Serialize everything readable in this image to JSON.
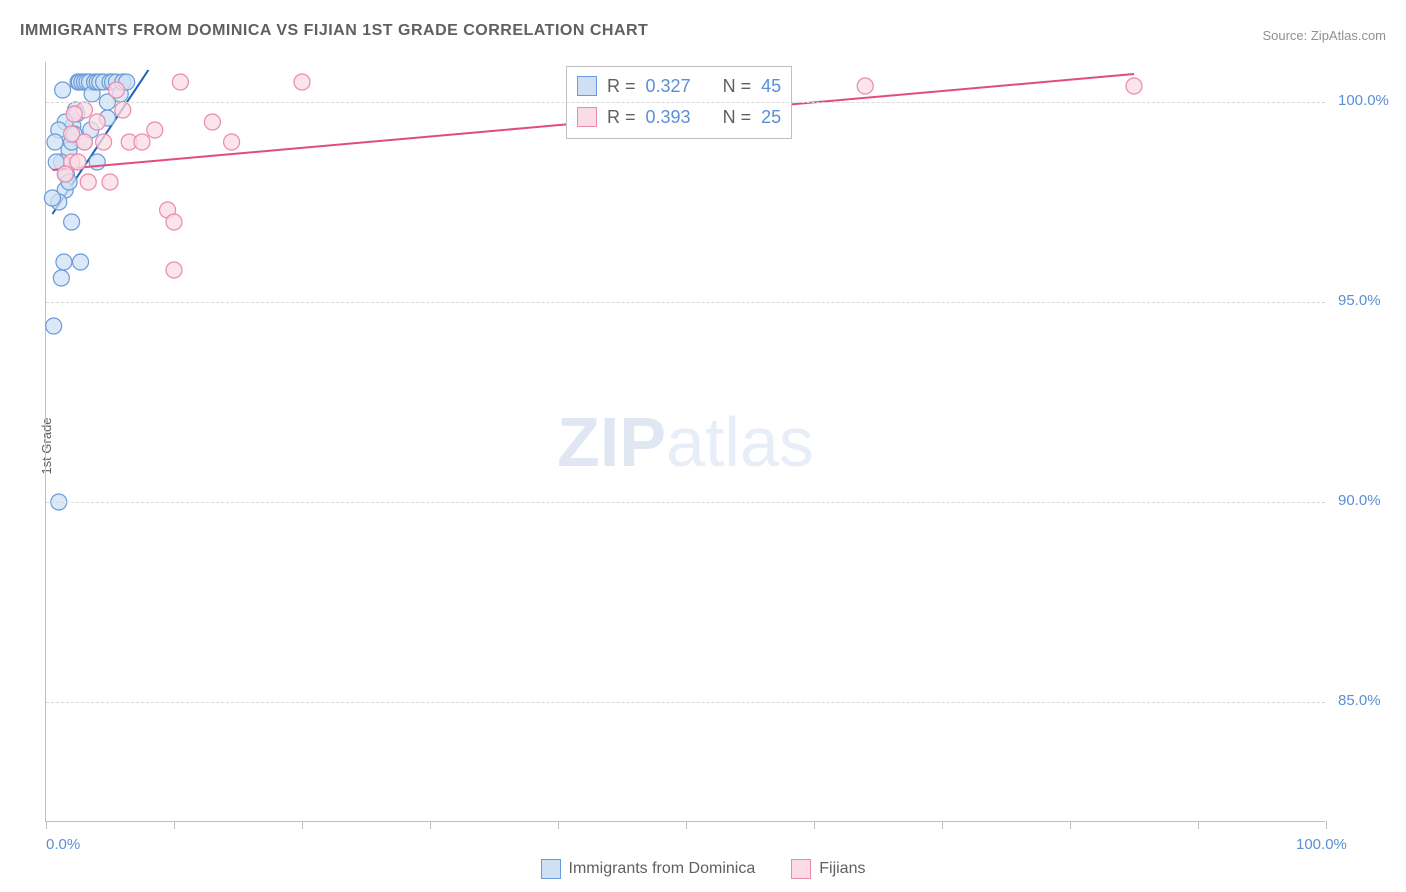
{
  "title": "IMMIGRANTS FROM DOMINICA VS FIJIAN 1ST GRADE CORRELATION CHART",
  "source_label": "Source: ZipAtlas.com",
  "ylabel": "1st Grade",
  "watermark_bold": "ZIP",
  "watermark_rest": "atlas",
  "xlim": [
    0,
    100
  ],
  "ylim": [
    82,
    101
  ],
  "x_tick_positions": [
    0,
    10,
    20,
    30,
    40,
    50,
    60,
    70,
    80,
    90,
    100
  ],
  "x_tick_labels": {
    "0": "0.0%",
    "100": "100.0%"
  },
  "y_gridlines": [
    85,
    90,
    95,
    100
  ],
  "y_tick_labels": {
    "85": "85.0%",
    "90": "90.0%",
    "95": "95.0%",
    "100": "100.0%"
  },
  "background_color": "#ffffff",
  "grid_color": "#d8d8d8",
  "axis_color": "#c0c0c0",
  "label_text_color": "#606060",
  "tick_text_color": "#5b8fd6",
  "series": [
    {
      "name": "Immigrants from Dominica",
      "key": "dominica",
      "R": "0.327",
      "N": "45",
      "fill": "#cfe0f4",
      "stroke": "#6a9bd8",
      "line_color": "#1f5fbf",
      "marker_radius": 8,
      "marker_opacity": 0.75,
      "trend": {
        "x1": 0.5,
        "y1": 97.2,
        "x2": 8.0,
        "y2": 100.8
      },
      "points": [
        [
          0.6,
          94.4
        ],
        [
          1.0,
          90.0
        ],
        [
          1.2,
          95.6
        ],
        [
          1.4,
          96.0
        ],
        [
          1.5,
          97.8
        ],
        [
          1.6,
          98.2
        ],
        [
          1.8,
          98.0
        ],
        [
          1.8,
          98.8
        ],
        [
          2.0,
          99.0
        ],
        [
          2.1,
          99.4
        ],
        [
          2.2,
          99.2
        ],
        [
          2.3,
          99.8
        ],
        [
          2.4,
          99.7
        ],
        [
          2.5,
          100.5
        ],
        [
          2.6,
          100.5
        ],
        [
          2.8,
          100.5
        ],
        [
          3.0,
          100.5
        ],
        [
          3.2,
          100.5
        ],
        [
          3.4,
          100.5
        ],
        [
          3.6,
          100.2
        ],
        [
          3.8,
          100.5
        ],
        [
          4.0,
          100.5
        ],
        [
          4.2,
          100.5
        ],
        [
          4.5,
          100.5
        ],
        [
          4.8,
          100.0
        ],
        [
          5.0,
          100.5
        ],
        [
          5.2,
          100.5
        ],
        [
          5.5,
          100.5
        ],
        [
          5.8,
          100.2
        ],
        [
          6.0,
          100.5
        ],
        [
          6.3,
          100.5
        ],
        [
          4.0,
          98.5
        ],
        [
          3.0,
          99.0
        ],
        [
          2.0,
          97.0
        ],
        [
          1.0,
          97.5
        ],
        [
          1.2,
          98.5
        ],
        [
          1.5,
          99.5
        ],
        [
          1.0,
          99.3
        ],
        [
          0.8,
          98.5
        ],
        [
          2.7,
          96.0
        ],
        [
          0.5,
          97.6
        ],
        [
          0.7,
          99.0
        ],
        [
          1.3,
          100.3
        ],
        [
          3.5,
          99.3
        ],
        [
          4.8,
          99.6
        ]
      ]
    },
    {
      "name": "Fijians",
      "key": "fijians",
      "R": "0.393",
      "N": "25",
      "fill": "#fbdbe4",
      "stroke": "#e98aaa",
      "line_color": "#e14d7b",
      "marker_radius": 8,
      "marker_opacity": 0.75,
      "trend": {
        "x1": 0.5,
        "y1": 98.3,
        "x2": 85.0,
        "y2": 100.7
      },
      "points": [
        [
          2.0,
          98.5
        ],
        [
          2.5,
          98.5
        ],
        [
          3.0,
          99.0
        ],
        [
          3.3,
          98.0
        ],
        [
          4.0,
          99.5
        ],
        [
          5.0,
          98.0
        ],
        [
          6.5,
          99.0
        ],
        [
          8.5,
          99.3
        ],
        [
          9.5,
          97.3
        ],
        [
          10.0,
          95.8
        ],
        [
          10.0,
          97.0
        ],
        [
          10.5,
          100.5
        ],
        [
          13.0,
          99.5
        ],
        [
          14.5,
          99.0
        ],
        [
          20.0,
          100.5
        ],
        [
          64.0,
          100.4
        ],
        [
          85.0,
          100.4
        ],
        [
          6.0,
          99.8
        ],
        [
          4.5,
          99.0
        ],
        [
          3.0,
          99.8
        ],
        [
          1.5,
          98.2
        ],
        [
          2.2,
          99.7
        ],
        [
          5.5,
          100.3
        ],
        [
          7.5,
          99.0
        ],
        [
          2.0,
          99.2
        ]
      ]
    }
  ],
  "legend_bottom": [
    {
      "label": "Immigrants from Dominica",
      "fill": "#cfe0f4",
      "stroke": "#6a9bd8"
    },
    {
      "label": "Fijians",
      "fill": "#fbdbe4",
      "stroke": "#e98aaa"
    }
  ]
}
